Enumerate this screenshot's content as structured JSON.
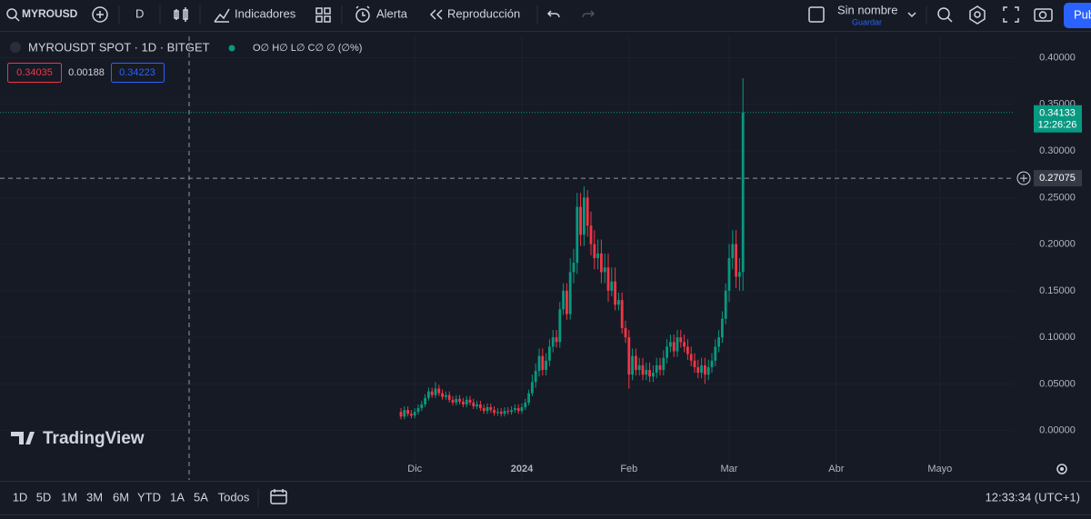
{
  "toolbar": {
    "symbol": "MYROUSD",
    "interval": "D",
    "indicators": "Indicadores",
    "alert": "Alerta",
    "replay": "Reproducción",
    "layout_name": "Sin nombre",
    "save": "Guardar",
    "publish": "Pub"
  },
  "legend": {
    "title": "MYROUSDT SPOT · 1D · BITGET",
    "ohlc": "O∅ H∅ L∅ C∅ ∅ (∅%)",
    "bid": "0.34035",
    "spread": "0.00188",
    "ask": "0.34223"
  },
  "watermark": "TradingView",
  "chart_data": {
    "type": "candlestick",
    "up_color": "#089981",
    "down_color": "#f23645",
    "open": [
      0.02,
      0.015,
      0.022,
      0.018,
      0.016,
      0.02,
      0.024,
      0.028,
      0.035,
      0.042,
      0.038,
      0.045,
      0.04,
      0.036,
      0.038,
      0.033,
      0.03,
      0.034,
      0.031,
      0.028,
      0.033,
      0.03,
      0.026,
      0.028,
      0.024,
      0.021,
      0.025,
      0.022,
      0.019,
      0.02,
      0.018,
      0.021,
      0.02,
      0.022,
      0.024,
      0.021,
      0.025,
      0.03,
      0.04,
      0.052,
      0.064,
      0.08,
      0.065,
      0.075,
      0.09,
      0.1,
      0.095,
      0.13,
      0.15,
      0.125,
      0.17,
      0.18,
      0.24,
      0.21,
      0.25,
      0.22,
      0.2,
      0.185,
      0.19,
      0.17,
      0.175,
      0.15,
      0.16,
      0.135,
      0.14,
      0.11,
      0.1,
      0.06,
      0.08,
      0.065,
      0.07,
      0.06,
      0.065,
      0.058,
      0.062,
      0.07,
      0.065,
      0.078,
      0.09,
      0.095,
      0.085,
      0.1,
      0.095,
      0.09,
      0.082,
      0.075,
      0.068,
      0.062,
      0.07,
      0.06,
      0.068,
      0.075,
      0.09,
      0.1,
      0.12,
      0.15,
      0.185,
      0.2,
      0.165,
      0.17
    ],
    "high": [
      0.024,
      0.026,
      0.026,
      0.022,
      0.024,
      0.028,
      0.032,
      0.039,
      0.046,
      0.046,
      0.052,
      0.049,
      0.044,
      0.042,
      0.042,
      0.037,
      0.038,
      0.038,
      0.035,
      0.037,
      0.037,
      0.034,
      0.032,
      0.032,
      0.028,
      0.029,
      0.029,
      0.026,
      0.024,
      0.024,
      0.025,
      0.025,
      0.026,
      0.028,
      0.028,
      0.029,
      0.034,
      0.044,
      0.06,
      0.072,
      0.088,
      0.088,
      0.083,
      0.098,
      0.108,
      0.108,
      0.138,
      0.158,
      0.158,
      0.185,
      0.195,
      0.255,
      0.255,
      0.262,
      0.258,
      0.235,
      0.215,
      0.205,
      0.205,
      0.19,
      0.19,
      0.175,
      0.175,
      0.148,
      0.148,
      0.118,
      0.108,
      0.088,
      0.088,
      0.078,
      0.078,
      0.073,
      0.073,
      0.07,
      0.078,
      0.078,
      0.086,
      0.098,
      0.103,
      0.103,
      0.108,
      0.108,
      0.103,
      0.098,
      0.09,
      0.083,
      0.076,
      0.078,
      0.078,
      0.076,
      0.083,
      0.098,
      0.108,
      0.128,
      0.158,
      0.2,
      0.215,
      0.215,
      0.185,
      0.378
    ],
    "low": [
      0.012,
      0.012,
      0.015,
      0.013,
      0.013,
      0.017,
      0.021,
      0.025,
      0.032,
      0.035,
      0.035,
      0.037,
      0.033,
      0.033,
      0.03,
      0.027,
      0.027,
      0.028,
      0.025,
      0.025,
      0.027,
      0.023,
      0.023,
      0.021,
      0.018,
      0.018,
      0.019,
      0.016,
      0.016,
      0.015,
      0.015,
      0.017,
      0.017,
      0.019,
      0.018,
      0.018,
      0.022,
      0.027,
      0.037,
      0.046,
      0.058,
      0.059,
      0.059,
      0.069,
      0.084,
      0.089,
      0.089,
      0.124,
      0.119,
      0.119,
      0.158,
      0.168,
      0.198,
      0.198,
      0.208,
      0.188,
      0.173,
      0.173,
      0.158,
      0.158,
      0.138,
      0.144,
      0.129,
      0.129,
      0.104,
      0.094,
      0.045,
      0.054,
      0.059,
      0.059,
      0.054,
      0.054,
      0.052,
      0.052,
      0.056,
      0.059,
      0.059,
      0.072,
      0.084,
      0.079,
      0.079,
      0.089,
      0.084,
      0.076,
      0.069,
      0.062,
      0.056,
      0.056,
      0.05,
      0.054,
      0.062,
      0.069,
      0.084,
      0.094,
      0.114,
      0.138,
      0.173,
      0.153,
      0.15,
      0.15
    ],
    "close": [
      0.015,
      0.022,
      0.018,
      0.016,
      0.02,
      0.024,
      0.028,
      0.035,
      0.042,
      0.038,
      0.045,
      0.04,
      0.036,
      0.038,
      0.033,
      0.03,
      0.034,
      0.031,
      0.028,
      0.033,
      0.03,
      0.026,
      0.028,
      0.024,
      0.021,
      0.025,
      0.022,
      0.019,
      0.02,
      0.018,
      0.021,
      0.02,
      0.022,
      0.024,
      0.021,
      0.025,
      0.03,
      0.04,
      0.052,
      0.064,
      0.08,
      0.065,
      0.075,
      0.09,
      0.1,
      0.095,
      0.13,
      0.15,
      0.125,
      0.17,
      0.18,
      0.24,
      0.21,
      0.25,
      0.22,
      0.2,
      0.185,
      0.19,
      0.17,
      0.175,
      0.15,
      0.16,
      0.135,
      0.14,
      0.11,
      0.1,
      0.06,
      0.08,
      0.065,
      0.07,
      0.06,
      0.065,
      0.058,
      0.062,
      0.07,
      0.065,
      0.078,
      0.09,
      0.095,
      0.085,
      0.1,
      0.095,
      0.09,
      0.082,
      0.075,
      0.068,
      0.062,
      0.07,
      0.06,
      0.068,
      0.075,
      0.09,
      0.1,
      0.12,
      0.15,
      0.185,
      0.2,
      0.165,
      0.17,
      0.34133
    ],
    "x_labels": [
      "Dic",
      "2024",
      "Feb",
      "Mar",
      "Abr",
      "Mayo"
    ],
    "ylim": [
      -0.053,
      0.423
    ],
    "yticks": [
      {
        "value": 0,
        "label": "0.00000"
      },
      {
        "value": 0.05,
        "label": "0.05000"
      },
      {
        "value": 0.1,
        "label": "0.10000"
      },
      {
        "value": 0.15,
        "label": "0.15000"
      },
      {
        "value": 0.2,
        "label": "0.20000"
      },
      {
        "value": 0.25,
        "label": "0.25000"
      },
      {
        "value": 0.3,
        "label": "0.30000"
      },
      {
        "value": 0.35,
        "label": "0.35000"
      },
      {
        "value": 0.4,
        "label": "0.40000"
      }
    ],
    "grid": true,
    "countdown": "12:26:26",
    "crosshair": {
      "value": 0.27075,
      "label": "0.27075"
    }
  },
  "ranges": [
    "1D",
    "5D",
    "1M",
    "3M",
    "6M",
    "YTD",
    "1A",
    "5A",
    "Todos"
  ],
  "clock": "12:33:34 (UTC+1)"
}
